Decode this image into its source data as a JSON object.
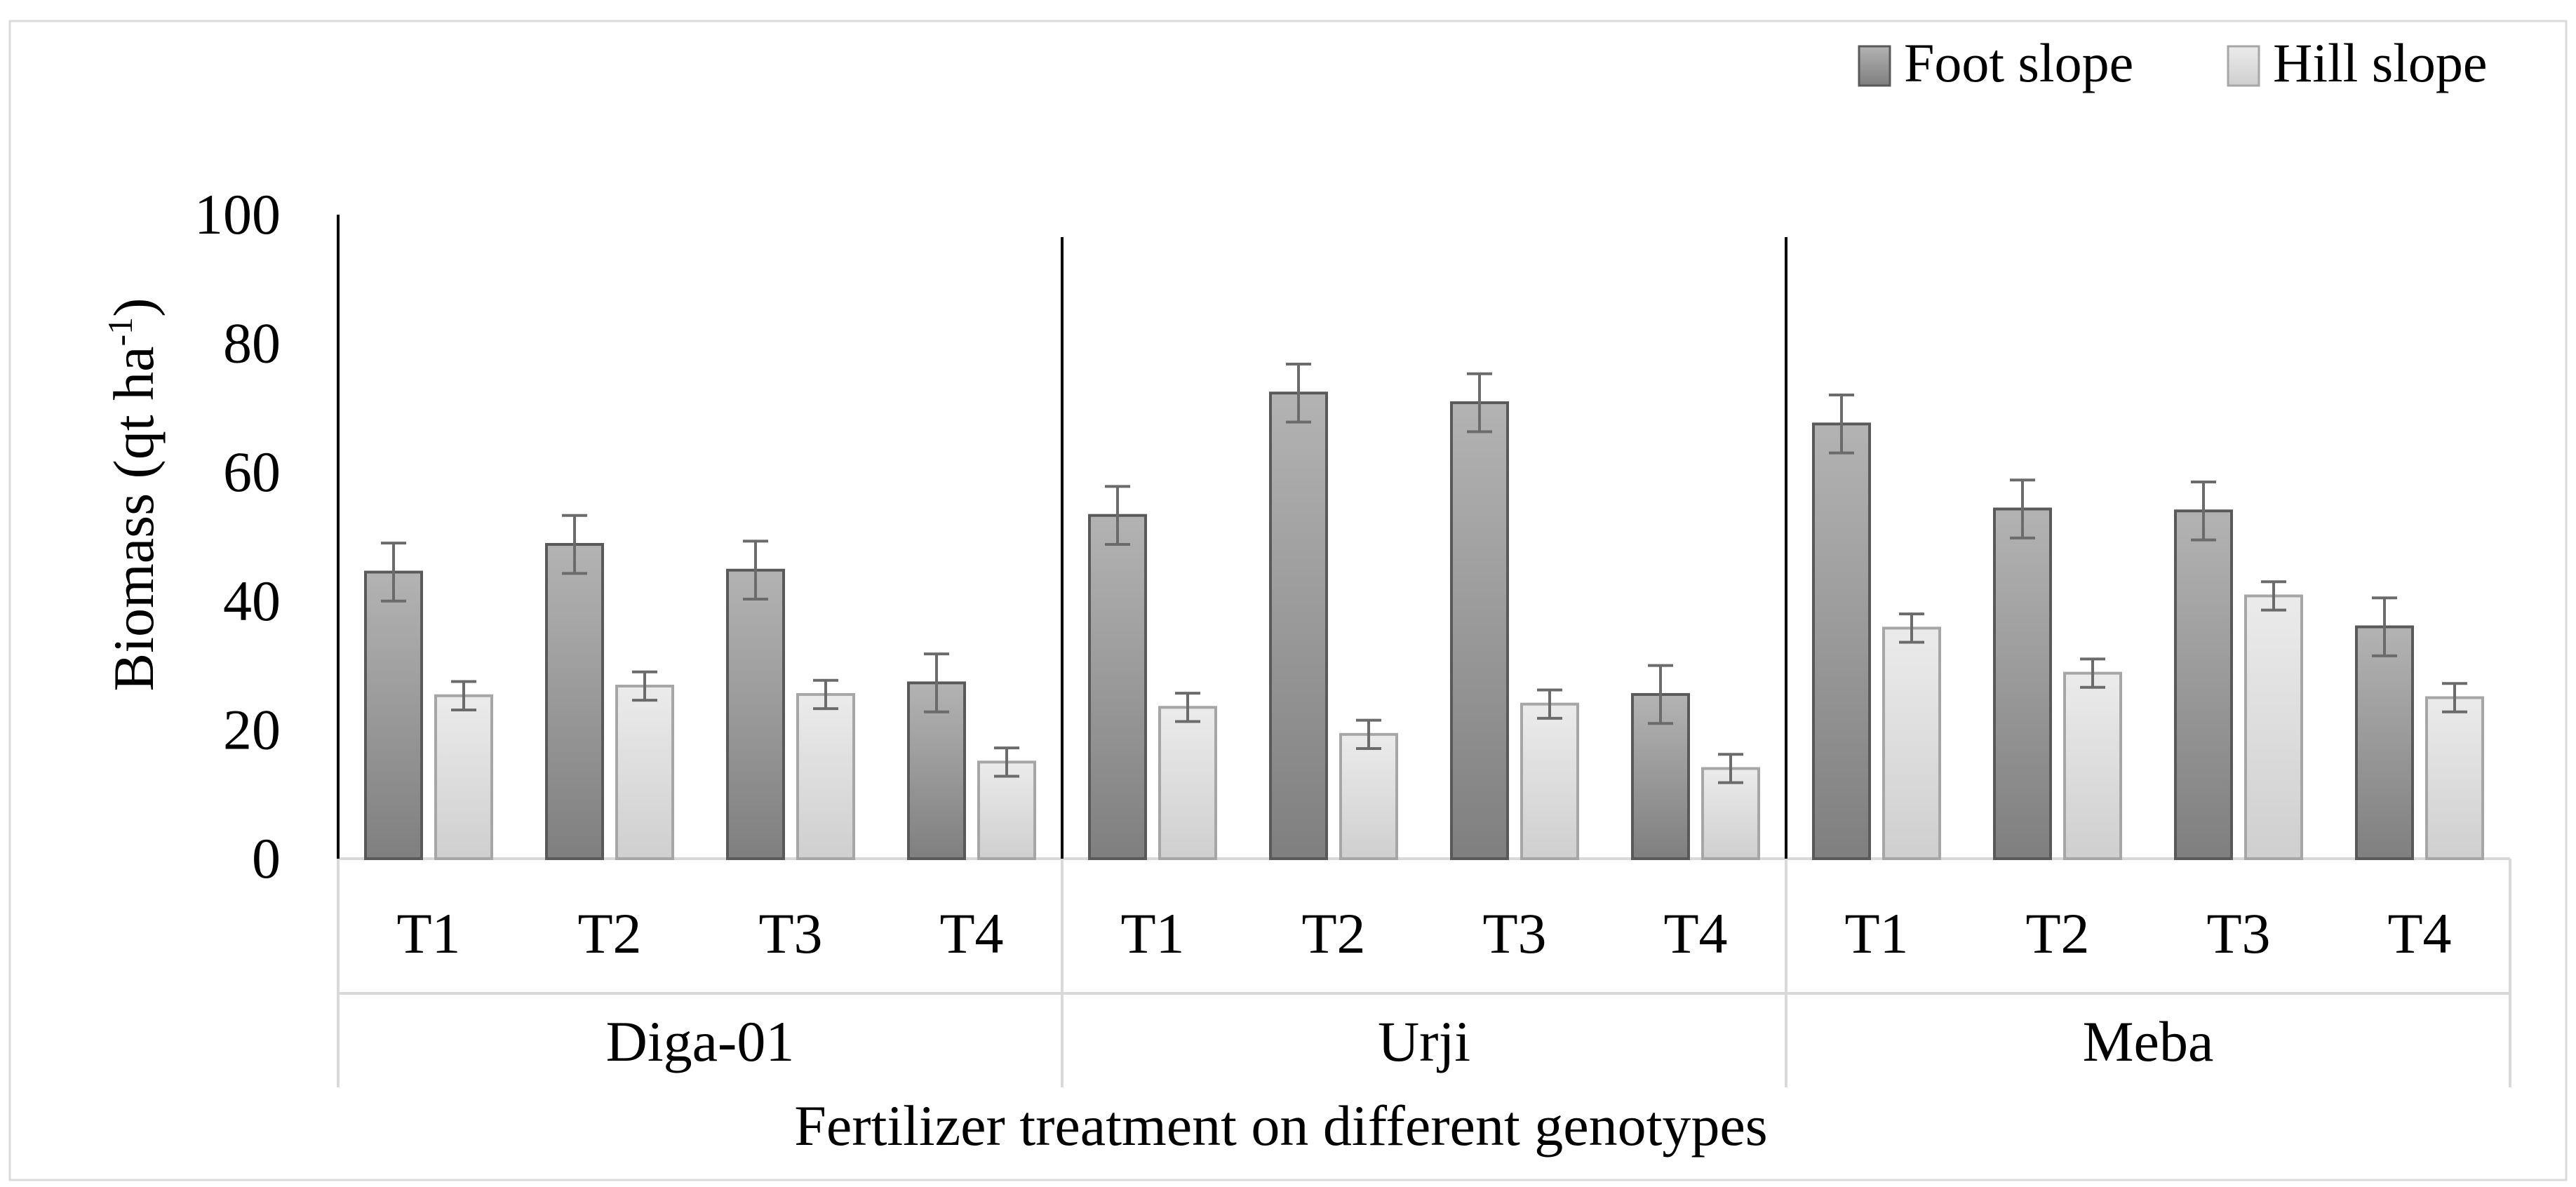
{
  "chart_data": {
    "type": "bar",
    "ylabel": "Biomass (qt ha",
    "ylabel_sup": "-1",
    "ylabel_close": ")",
    "xlabel": "Fertilizer treatment on different genotypes",
    "ylim": [
      0,
      100
    ],
    "yticks": [
      0,
      20,
      40,
      60,
      80,
      100
    ],
    "legend_position": "top-right",
    "colors": {
      "foot_fill_top": "#b3b3b3",
      "foot_fill_bottom": "#7f7f7f",
      "foot_stroke": "#595959",
      "hill_fill_top": "#ebebeb",
      "hill_fill_bottom": "#cfcfcf",
      "hill_stroke": "#a6a6a6",
      "error_bar": "#6b6b6b",
      "axis_line": "#000000",
      "frame_line": "#d9d9d9"
    },
    "groups": [
      {
        "name": "Diga-01",
        "categories": [
          "T1",
          "T2",
          "T3",
          "T4"
        ],
        "series": [
          {
            "name": "Foot slope",
            "values": [
              44.5,
              48.8,
              44.8,
              27.3
            ],
            "errors": [
              4.5,
              4.5,
              4.5,
              4.5
            ]
          },
          {
            "name": "Hill slope",
            "values": [
              25.3,
              26.8,
              25.5,
              15.0
            ],
            "errors": [
              2.2,
              2.2,
              2.2,
              2.2
            ]
          }
        ]
      },
      {
        "name": "Urji",
        "categories": [
          "T1",
          "T2",
          "T3",
          "T4"
        ],
        "series": [
          {
            "name": "Foot slope",
            "values": [
              53.3,
              72.3,
              70.8,
              25.5
            ],
            "errors": [
              4.5,
              4.5,
              4.5,
              4.5
            ]
          },
          {
            "name": "Hill slope",
            "values": [
              23.5,
              19.3,
              24.0,
              14.0
            ],
            "errors": [
              2.2,
              2.2,
              2.2,
              2.2
            ]
          }
        ]
      },
      {
        "name": "Meba",
        "categories": [
          "T1",
          "T2",
          "T3",
          "T4"
        ],
        "series": [
          {
            "name": "Foot slope",
            "values": [
              67.5,
              54.3,
              54.0,
              36.0
            ],
            "errors": [
              4.5,
              4.5,
              4.5,
              4.5
            ]
          },
          {
            "name": "Hill slope",
            "values": [
              35.8,
              28.8,
              40.8,
              25.0
            ],
            "errors": [
              2.2,
              2.2,
              2.2,
              2.2
            ]
          }
        ]
      }
    ]
  }
}
